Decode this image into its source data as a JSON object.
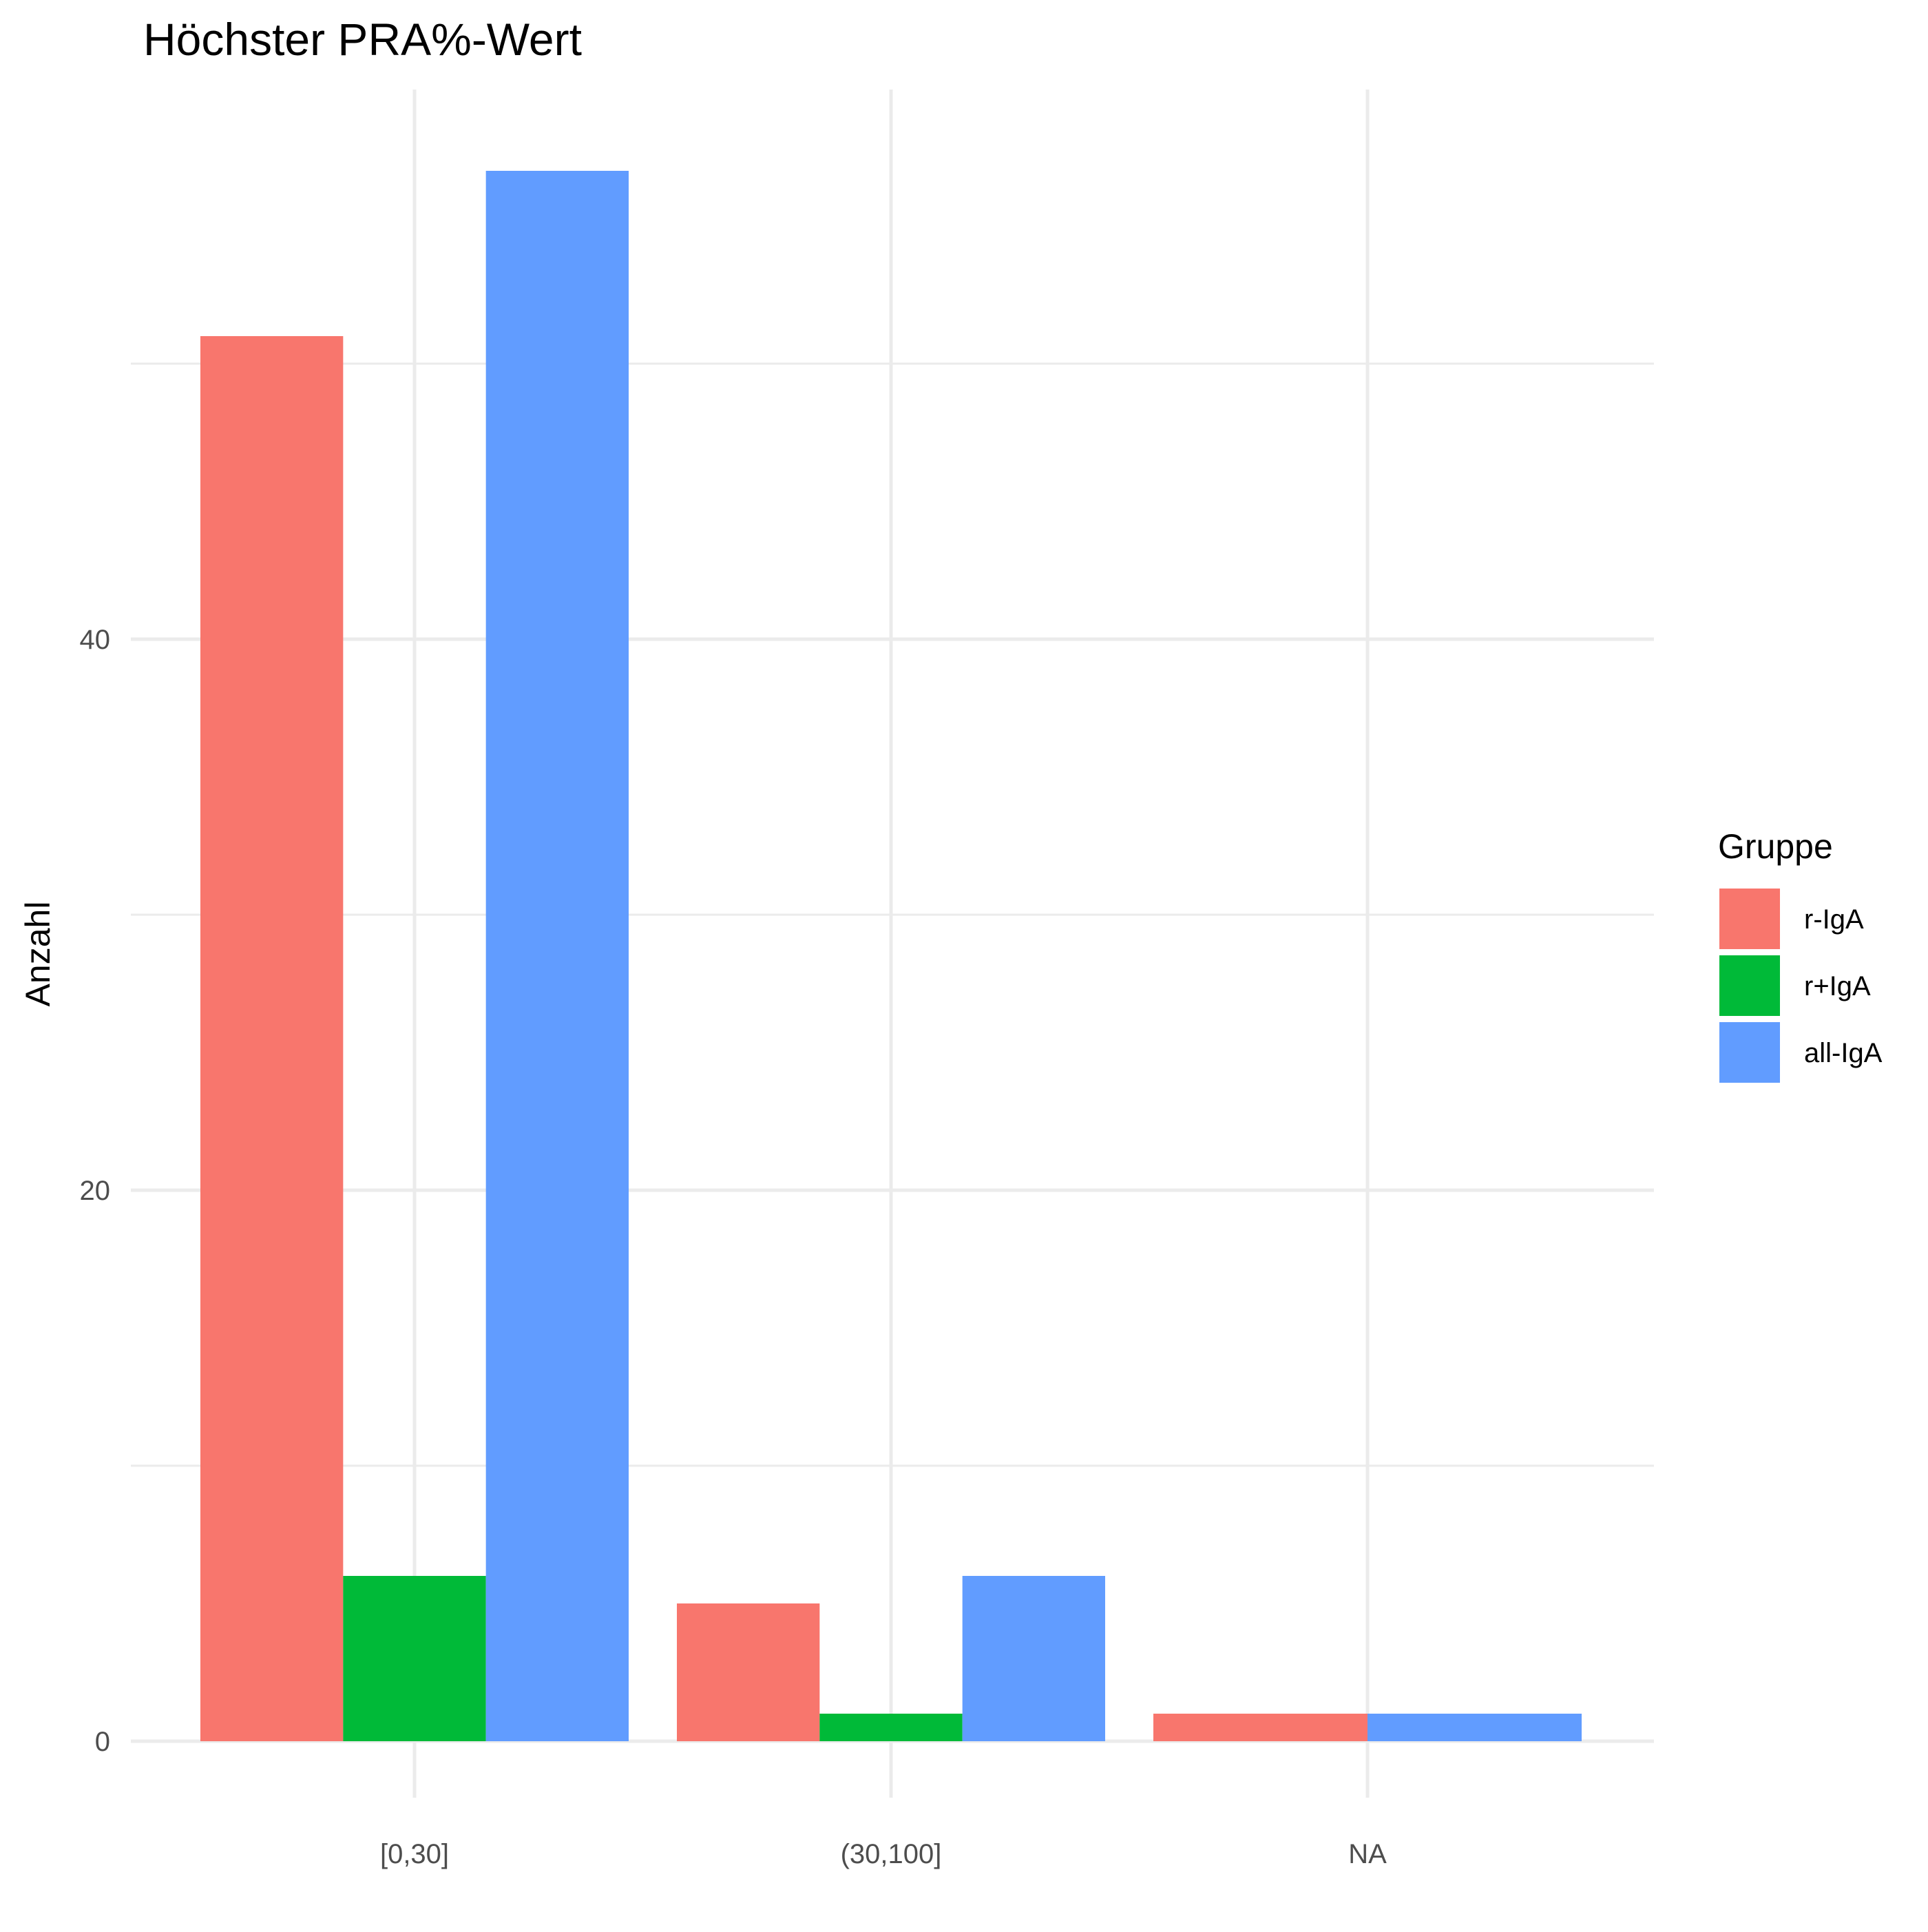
{
  "chart_data": {
    "type": "bar",
    "title": "Höchster PRA%-Wert",
    "xlabel": "",
    "ylabel": "Anzahl",
    "categories": [
      "[0,30]",
      "(30,100]",
      "NA"
    ],
    "series": [
      {
        "name": "r-IgA",
        "color": "#F8766D",
        "values": [
          51,
          5,
          1
        ]
      },
      {
        "name": "r+IgA",
        "color": "#00BA38",
        "values": [
          6,
          1,
          0
        ]
      },
      {
        "name": "all-IgA",
        "color": "#619CFF",
        "values": [
          57,
          6,
          1
        ]
      }
    ],
    "ylim": [
      0,
      57
    ],
    "yticks": [
      0,
      20,
      40
    ],
    "grid": true,
    "legend": {
      "title": "Gruppe",
      "position": "right"
    }
  }
}
